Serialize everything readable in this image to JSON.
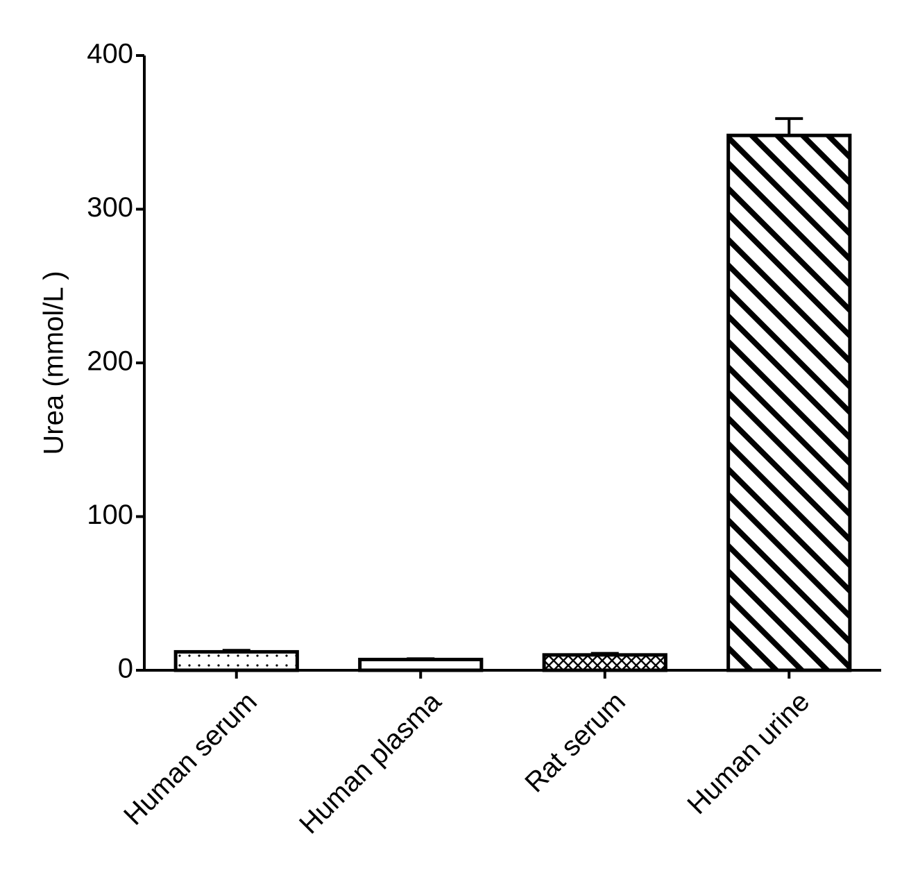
{
  "chart_data": {
    "type": "bar",
    "ylabel": "Urea (mmol/L )",
    "categories": [
      "Human serum",
      "Human plasma",
      "Rat serum",
      "Human urine"
    ],
    "values": [
      12,
      7,
      10,
      348
    ],
    "errors": [
      1,
      0.5,
      1,
      11
    ],
    "patterns": [
      "dots",
      "none",
      "crosshatch",
      "stripes"
    ],
    "color": "#000000",
    "ylim": [
      0,
      400
    ],
    "yticks": [
      0,
      100,
      200,
      300,
      400
    ]
  }
}
